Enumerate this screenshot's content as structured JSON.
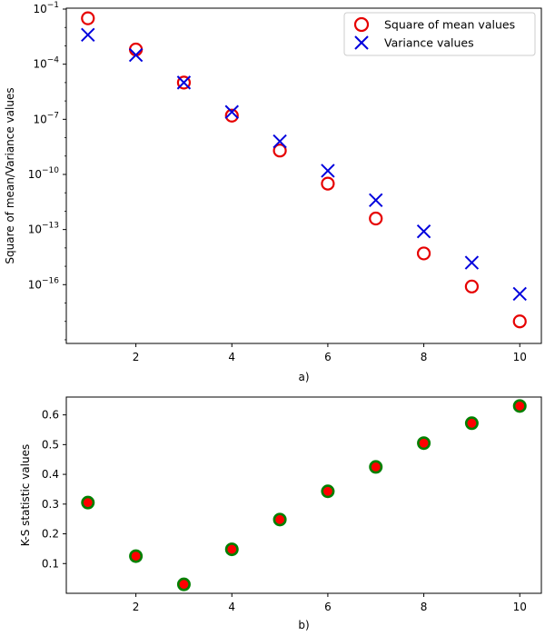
{
  "chart_data": [
    {
      "type": "scatter",
      "panel_label": "a)",
      "xlabel": "a)",
      "ylabel": "Square of mean/Variance values",
      "yscale": "log",
      "xlim": [
        0.55,
        10.45
      ],
      "ylim_exponent": [
        -19.2,
        -0.95
      ],
      "xticks": [
        2,
        4,
        6,
        8,
        10
      ],
      "yticks": [
        {
          "exp": -1,
          "label": "10",
          "sup": "−1"
        },
        {
          "exp": -4,
          "label": "10",
          "sup": "−4"
        },
        {
          "exp": -7,
          "label": "10",
          "sup": "−7"
        },
        {
          "exp": -10,
          "label": "10",
          "sup": "−10"
        },
        {
          "exp": -13,
          "label": "10",
          "sup": "−13"
        },
        {
          "exp": -16,
          "label": "10",
          "sup": "−16"
        }
      ],
      "x": [
        1,
        2,
        3,
        4,
        5,
        6,
        7,
        8,
        9,
        10
      ],
      "series": [
        {
          "name": "Square of mean values",
          "marker": "circle-open",
          "color": "#e60000",
          "values_log10": [
            -1.5,
            -3.2,
            -5.0,
            -6.8,
            -8.7,
            -10.5,
            -12.4,
            -14.3,
            -16.1,
            -18.0
          ]
        },
        {
          "name": "Variance values",
          "marker": "x",
          "color": "#0000dd",
          "values_log10": [
            -2.4,
            -3.5,
            -5.0,
            -6.6,
            -8.2,
            -9.8,
            -11.4,
            -13.1,
            -14.8,
            -16.5
          ]
        }
      ],
      "legend": {
        "position": "top-right",
        "entries": [
          "Square of mean values",
          "Variance values"
        ]
      }
    },
    {
      "type": "scatter",
      "panel_label": "b)",
      "xlabel": "b)",
      "ylabel": "K-S statistic values",
      "xlim": [
        0.55,
        10.45
      ],
      "ylim": [
        0.0,
        0.66
      ],
      "xticks": [
        2,
        4,
        6,
        8,
        10
      ],
      "yticks": [
        0.1,
        0.2,
        0.3,
        0.4,
        0.5,
        0.6
      ],
      "ytick_labels": [
        "0.1",
        "0.2",
        "0.3",
        "0.4",
        "0.5",
        "0.6"
      ],
      "x": [
        1,
        2,
        3,
        4,
        5,
        6,
        7,
        8,
        9,
        10
      ],
      "values": [
        0.305,
        0.125,
        0.03,
        0.148,
        0.248,
        0.343,
        0.425,
        0.505,
        0.572,
        0.63
      ],
      "marker_fill": "#ff0000",
      "marker_edge": "#008000"
    }
  ]
}
